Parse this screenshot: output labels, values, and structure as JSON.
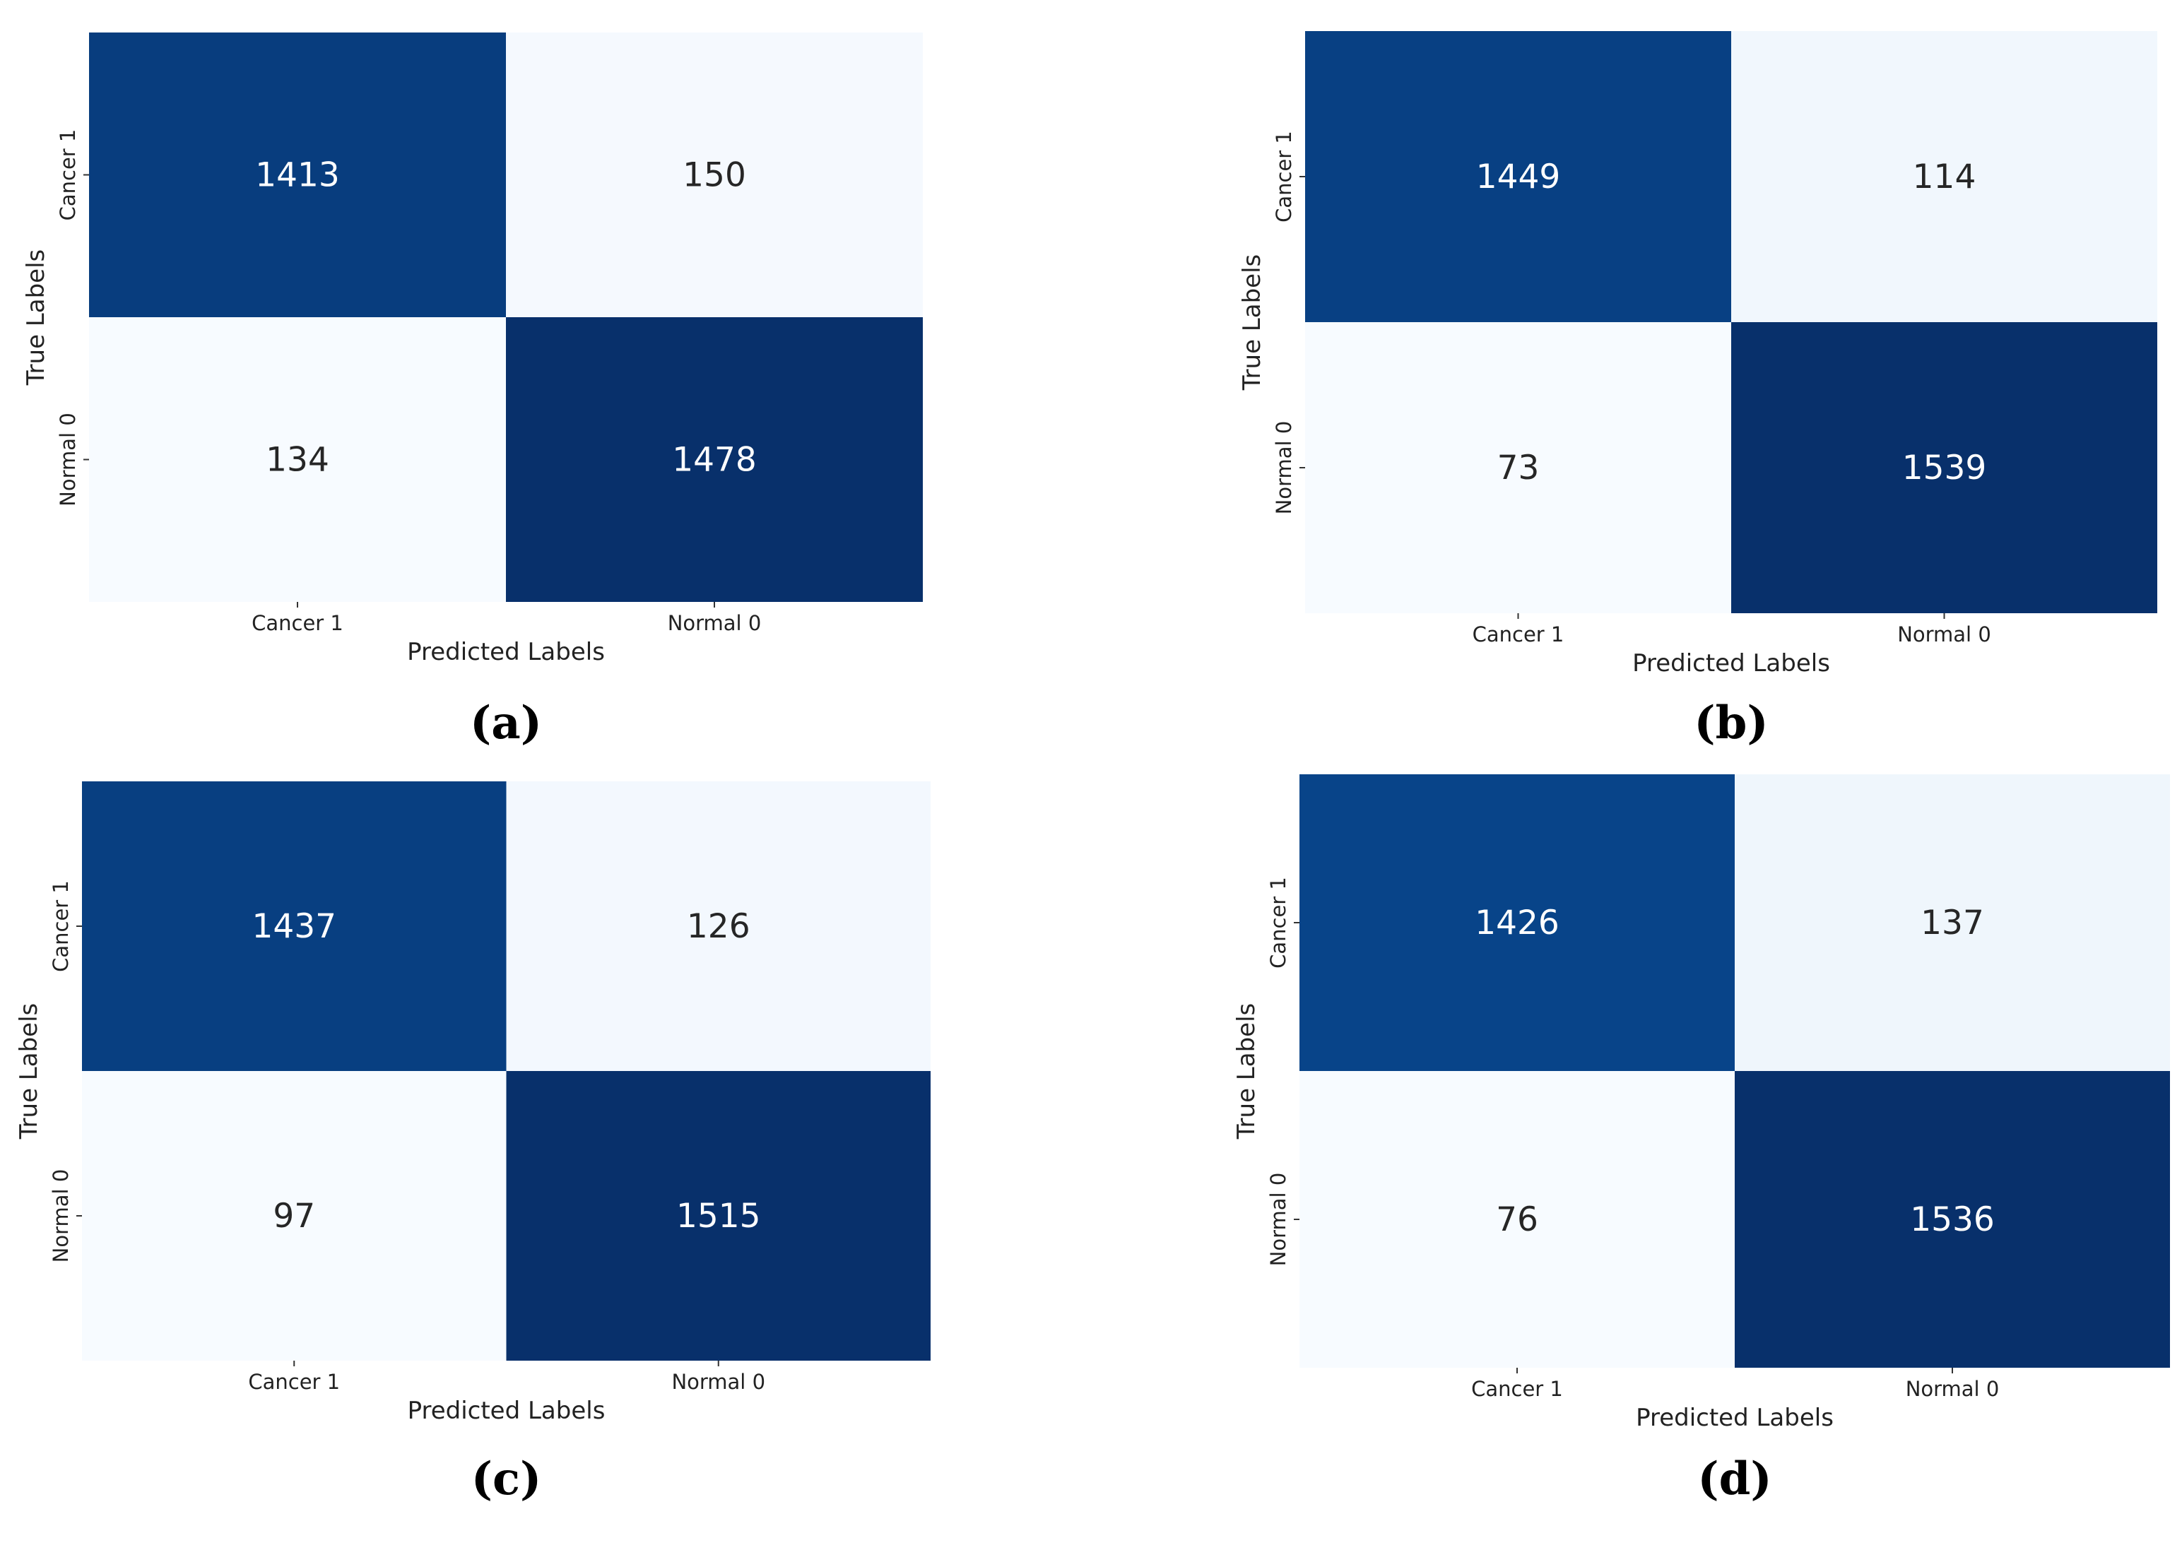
{
  "chart_data": [
    {
      "type": "heatmap",
      "panel_label": "(a)",
      "x_categories": [
        "Cancer 1",
        "Normal 0"
      ],
      "y_categories": [
        "Cancer 1",
        "Normal 0"
      ],
      "values": [
        [
          1413,
          150
        ],
        [
          134,
          1478
        ]
      ],
      "xlabel": "Predicted Labels",
      "ylabel": "True Labels",
      "colormap": "Blues",
      "colorbar": false
    },
    {
      "type": "heatmap",
      "panel_label": "(b)",
      "x_categories": [
        "Cancer 1",
        "Normal 0"
      ],
      "y_categories": [
        "Cancer 1",
        "Normal 0"
      ],
      "values": [
        [
          1449,
          114
        ],
        [
          73,
          1539
        ]
      ],
      "xlabel": "Predicted Labels",
      "ylabel": "True Labels",
      "colormap": "Blues",
      "colorbar": false
    },
    {
      "type": "heatmap",
      "panel_label": "(c)",
      "x_categories": [
        "Cancer 1",
        "Normal 0"
      ],
      "y_categories": [
        "Cancer 1",
        "Normal 0"
      ],
      "values": [
        [
          1437,
          126
        ],
        [
          97,
          1515
        ]
      ],
      "xlabel": "Predicted Labels",
      "ylabel": "True Labels",
      "colormap": "Blues",
      "colorbar": false
    },
    {
      "type": "heatmap",
      "panel_label": "(d)",
      "x_categories": [
        "Cancer 1",
        "Normal 0"
      ],
      "y_categories": [
        "Cancer 1",
        "Normal 0"
      ],
      "values": [
        [
          1426,
          137
        ],
        [
          76,
          1536
        ]
      ],
      "xlabel": "Predicted Labels",
      "ylabel": "True Labels",
      "colormap": "Blues",
      "colorbar": false
    }
  ]
}
